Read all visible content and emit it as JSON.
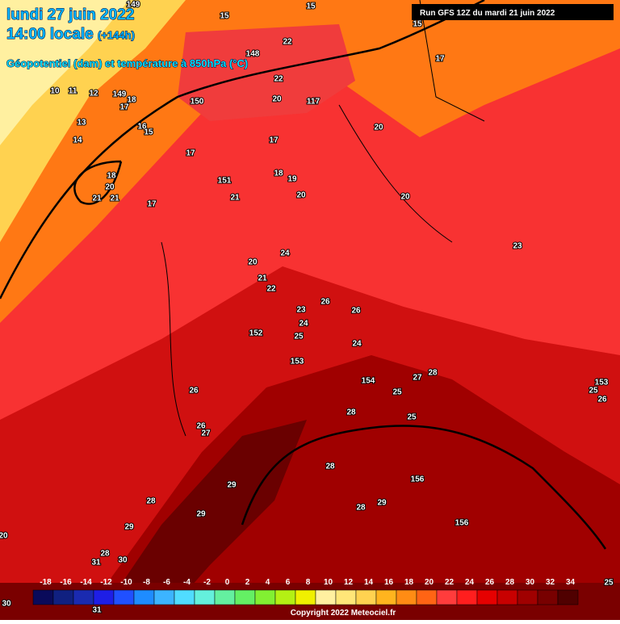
{
  "header": {
    "date": "lundi 27 juin 2022",
    "time": "14:00 locale",
    "lead": "(+144h)",
    "subtitle": "Géopotentiel (dam) et température à 850hPa (°C)",
    "run": "Run GFS 12Z du mardi 21 juin 2022"
  },
  "legend": {
    "ticks": [
      -18,
      -16,
      -14,
      -12,
      -10,
      -8,
      -6,
      -4,
      -2,
      0,
      2,
      4,
      6,
      8,
      10,
      12,
      14,
      16,
      18,
      20,
      22,
      24,
      26,
      28,
      30,
      32,
      34
    ],
    "colors": [
      "#0a0a5a",
      "#102080",
      "#1a2ab0",
      "#1e1ee6",
      "#2050ff",
      "#1e8cff",
      "#3cb4ff",
      "#50dcff",
      "#64f0dc",
      "#64f0a0",
      "#64f064",
      "#82f032",
      "#b4f014",
      "#f0f000",
      "#fff0a0",
      "#ffe678",
      "#ffd250",
      "#ffb41e",
      "#ff8c14",
      "#ff6414",
      "#ff3c3c",
      "#ff1e1e",
      "#e60000",
      "#c80000",
      "#a00000",
      "#780000",
      "#500000"
    ]
  },
  "contour_labels": [
    149,
    15,
    15,
    15,
    148,
    22,
    22,
    17,
    10,
    11,
    12,
    149,
    18,
    17,
    150,
    20,
    117,
    13,
    16,
    15,
    20,
    14,
    17,
    17,
    18,
    19,
    151,
    21,
    20,
    20,
    18,
    20,
    21,
    21,
    17,
    23,
    20,
    24,
    21,
    22,
    26,
    26,
    23,
    24,
    152,
    25,
    24,
    153,
    154,
    27,
    28,
    153,
    25,
    26,
    26,
    25,
    28,
    25,
    26,
    27,
    28,
    156,
    29,
    28,
    29,
    28,
    29,
    156,
    29,
    20,
    28,
    31,
    30,
    30,
    31,
    25
  ],
  "copyright": "Copyright 2022 Meteociel.fr"
}
